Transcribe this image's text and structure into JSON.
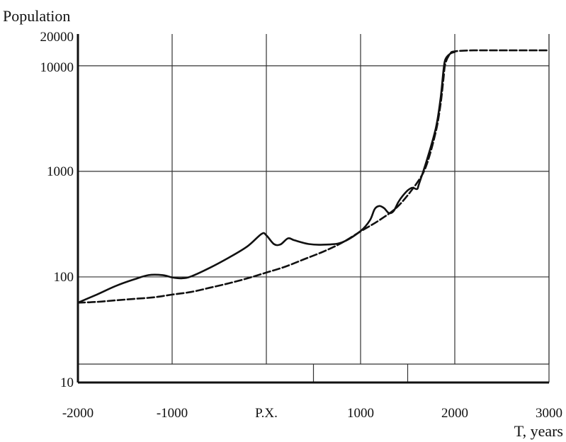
{
  "chart_data": {
    "type": "line",
    "ylabel": "Population",
    "xlabel": "T, years",
    "y_scale": "log",
    "xlim": [
      -2000,
      3000
    ],
    "ylim": [
      10,
      20000
    ],
    "y_ticks": [
      {
        "value": 10,
        "label": "10"
      },
      {
        "value": 100,
        "label": "100"
      },
      {
        "value": 1000,
        "label": "1000"
      },
      {
        "value": 10000,
        "label": "10000"
      },
      {
        "value": 20000,
        "label": "20000"
      }
    ],
    "x_ticks": [
      {
        "value": -2000,
        "label": "-2000"
      },
      {
        "value": -1000,
        "label": "-1000"
      },
      {
        "value": 0,
        "label": "P.X."
      },
      {
        "value": 1000,
        "label": "1000"
      },
      {
        "value": 2000,
        "label": "2000"
      },
      {
        "value": 3000,
        "label": "3000"
      }
    ],
    "grid": true,
    "series": [
      {
        "style": "solid",
        "points": [
          [
            -2000,
            57
          ],
          [
            -1800,
            68
          ],
          [
            -1600,
            82
          ],
          [
            -1400,
            95
          ],
          [
            -1250,
            104
          ],
          [
            -1100,
            104
          ],
          [
            -1000,
            99
          ],
          [
            -900,
            97
          ],
          [
            -800,
            101
          ],
          [
            -600,
            122
          ],
          [
            -400,
            152
          ],
          [
            -200,
            195
          ],
          [
            -50,
            256
          ],
          [
            0,
            248
          ],
          [
            80,
            205
          ],
          [
            150,
            203
          ],
          [
            230,
            232
          ],
          [
            300,
            222
          ],
          [
            450,
            205
          ],
          [
            600,
            202
          ],
          [
            800,
            212
          ],
          [
            1000,
            272
          ],
          [
            1100,
            345
          ],
          [
            1150,
            440
          ],
          [
            1200,
            470
          ],
          [
            1250,
            448
          ],
          [
            1300,
            403
          ],
          [
            1350,
            420
          ],
          [
            1400,
            510
          ],
          [
            1450,
            590
          ],
          [
            1500,
            660
          ],
          [
            1550,
            700
          ],
          [
            1600,
            680
          ],
          [
            1620,
            760
          ],
          [
            1700,
            1250
          ],
          [
            1800,
            2600
          ],
          [
            1850,
            5000
          ],
          [
            1880,
            9000
          ],
          [
            1900,
            11500
          ],
          [
            1950,
            13000
          ],
          [
            2000,
            13500
          ]
        ]
      },
      {
        "style": "dashed",
        "points": [
          [
            -2000,
            57
          ],
          [
            -1800,
            58
          ],
          [
            -1600,
            60
          ],
          [
            -1400,
            62
          ],
          [
            -1200,
            64
          ],
          [
            -1000,
            68
          ],
          [
            -800,
            72
          ],
          [
            -600,
            79
          ],
          [
            -400,
            87
          ],
          [
            -200,
            97
          ],
          [
            0,
            110
          ],
          [
            200,
            125
          ],
          [
            400,
            147
          ],
          [
            600,
            173
          ],
          [
            800,
            210
          ],
          [
            1000,
            270
          ],
          [
            1200,
            345
          ],
          [
            1400,
            470
          ],
          [
            1600,
            780
          ],
          [
            1700,
            1150
          ],
          [
            1800,
            2400
          ],
          [
            1850,
            4400
          ],
          [
            1880,
            7500
          ],
          [
            1900,
            10500
          ],
          [
            1950,
            13000
          ],
          [
            2000,
            13700
          ],
          [
            2200,
            14000
          ],
          [
            2500,
            14000
          ],
          [
            3000,
            14000
          ]
        ]
      }
    ]
  }
}
